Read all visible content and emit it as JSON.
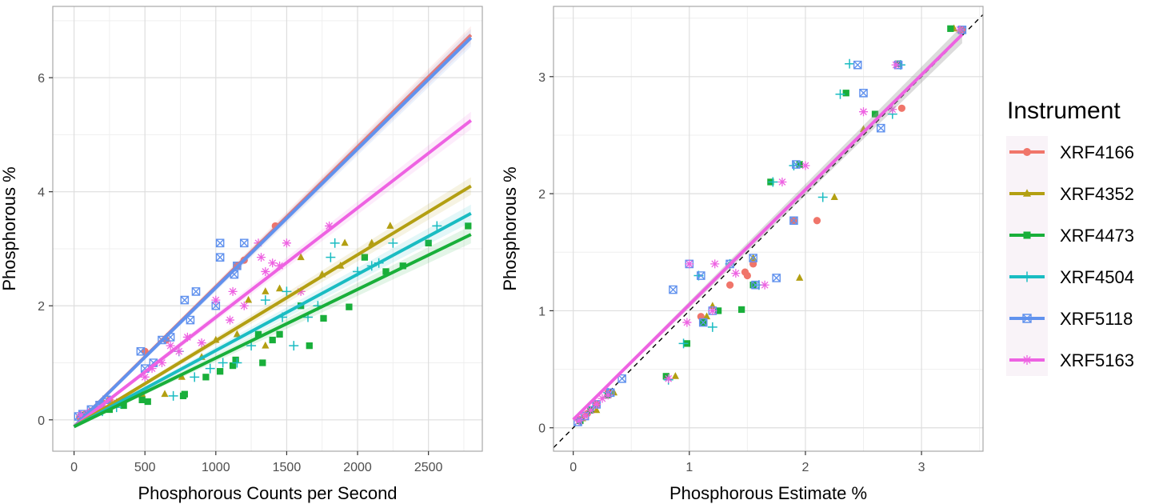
{
  "colors": {
    "XRF4166": "#F0756A",
    "XRF4352": "#B39F12",
    "XRF4473": "#19AF3A",
    "XRF4504": "#1ABCC2",
    "XRF5118": "#6192EE",
    "XRF5163": "#EE62E2",
    "panel_bg": "#ffffff",
    "grid_major": "#DEDEDE",
    "grid_minor": "#EFEFEF",
    "panel_border": "#A8A8A8",
    "axis_text": "#4D4D4D"
  },
  "legend": {
    "title": "Instrument",
    "entries": [
      {
        "label": "XRF4166",
        "shape": "circle"
      },
      {
        "label": "XRF4352",
        "shape": "triangle"
      },
      {
        "label": "XRF4473",
        "shape": "square"
      },
      {
        "label": "XRF4504",
        "shape": "plus"
      },
      {
        "label": "XRF5118",
        "shape": "square-cross"
      },
      {
        "label": "XRF5163",
        "shape": "asterisk"
      }
    ]
  },
  "chart_data": [
    {
      "type": "scatter",
      "xlabel": "Phosphorous Counts per Second",
      "ylabel": "Phosphorous %",
      "xlim": [
        -150,
        2880
      ],
      "ylim": [
        -0.55,
        7.25
      ],
      "xticks": [
        0,
        500,
        1000,
        1500,
        2000,
        2500
      ],
      "yticks": [
        0,
        2,
        4,
        6
      ],
      "xtick_labels": [
        "0",
        "500",
        "1000",
        "1500",
        "2000",
        "2500"
      ],
      "ytick_labels": [
        "0",
        "2",
        "4",
        "6"
      ],
      "grid": true,
      "fit_lines": [
        {
          "series": "XRF4166",
          "x": [
            0,
            2800
          ],
          "y": [
            -0.12,
            6.75
          ]
        },
        {
          "series": "XRF5118",
          "x": [
            0,
            2800
          ],
          "y": [
            -0.12,
            6.7
          ]
        },
        {
          "series": "XRF5163",
          "x": [
            0,
            2800
          ],
          "y": [
            -0.12,
            5.25
          ]
        },
        {
          "series": "XRF4352",
          "x": [
            0,
            2800
          ],
          "y": [
            -0.12,
            4.1
          ]
        },
        {
          "series": "XRF4504",
          "x": [
            0,
            2800
          ],
          "y": [
            -0.12,
            3.62
          ]
        },
        {
          "series": "XRF4473",
          "x": [
            0,
            2800
          ],
          "y": [
            -0.12,
            3.25
          ]
        }
      ],
      "series": [
        {
          "name": "XRF4166",
          "points": [
            [
              40,
              0.05
            ],
            [
              60,
              0.08
            ],
            [
              80,
              0.1
            ],
            [
              120,
              0.15
            ],
            [
              150,
              0.2
            ],
            [
              200,
              0.3
            ],
            [
              250,
              0.35
            ],
            [
              500,
              1.2
            ],
            [
              650,
              1.4
            ],
            [
              1150,
              2.7
            ],
            [
              1200,
              2.8
            ],
            [
              1420,
              3.4
            ]
          ]
        },
        {
          "name": "XRF4352",
          "points": [
            [
              60,
              0.06
            ],
            [
              100,
              0.1
            ],
            [
              150,
              0.16
            ],
            [
              200,
              0.22
            ],
            [
              300,
              0.3
            ],
            [
              480,
              0.45
            ],
            [
              640,
              0.45
            ],
            [
              760,
              0.75
            ],
            [
              900,
              1.1
            ],
            [
              1000,
              1.4
            ],
            [
              1150,
              1.5
            ],
            [
              1230,
              2.1
            ],
            [
              1350,
              1.3
            ],
            [
              1350,
              2.25
            ],
            [
              1450,
              2.3
            ],
            [
              1600,
              2.85
            ],
            [
              1750,
              2.55
            ],
            [
              1880,
              2.7
            ],
            [
              1910,
              3.1
            ],
            [
              2100,
              3.1
            ],
            [
              2230,
              3.4
            ]
          ]
        },
        {
          "name": "XRF4473",
          "points": [
            [
              80,
              0.08
            ],
            [
              150,
              0.12
            ],
            [
              250,
              0.18
            ],
            [
              350,
              0.25
            ],
            [
              480,
              0.35
            ],
            [
              520,
              0.32
            ],
            [
              770,
              0.42
            ],
            [
              780,
              0.45
            ],
            [
              930,
              0.75
            ],
            [
              1030,
              0.85
            ],
            [
              1120,
              0.95
            ],
            [
              1140,
              1.05
            ],
            [
              1300,
              1.5
            ],
            [
              1330,
              1.0
            ],
            [
              1400,
              1.4
            ],
            [
              1450,
              1.5
            ],
            [
              1600,
              2.0
            ],
            [
              1660,
              1.3
            ],
            [
              1760,
              1.78
            ],
            [
              1940,
              1.98
            ],
            [
              2050,
              2.85
            ],
            [
              2200,
              2.6
            ],
            [
              2320,
              2.7
            ],
            [
              2500,
              3.1
            ],
            [
              2780,
              3.4
            ]
          ]
        },
        {
          "name": "XRF4504",
          "points": [
            [
              100,
              0.1
            ],
            [
              200,
              0.15
            ],
            [
              300,
              0.22
            ],
            [
              700,
              0.42
            ],
            [
              740,
              1.2
            ],
            [
              850,
              0.75
            ],
            [
              960,
              0.9
            ],
            [
              1050,
              1.0
            ],
            [
              1150,
              1.0
            ],
            [
              1250,
              1.3
            ],
            [
              1350,
              2.1
            ],
            [
              1470,
              1.8
            ],
            [
              1500,
              2.25
            ],
            [
              1550,
              1.3
            ],
            [
              1650,
              1.8
            ],
            [
              1720,
              2.0
            ],
            [
              1810,
              2.85
            ],
            [
              1840,
              3.1
            ],
            [
              2000,
              2.6
            ],
            [
              2100,
              2.7
            ],
            [
              2150,
              2.75
            ],
            [
              2250,
              3.1
            ],
            [
              2560,
              3.4
            ]
          ]
        },
        {
          "name": "XRF5118",
          "points": [
            [
              30,
              0.06
            ],
            [
              60,
              0.1
            ],
            [
              120,
              0.18
            ],
            [
              180,
              0.26
            ],
            [
              230,
              0.35
            ],
            [
              470,
              1.2
            ],
            [
              500,
              0.9
            ],
            [
              560,
              1.0
            ],
            [
              620,
              1.4
            ],
            [
              680,
              1.45
            ],
            [
              780,
              2.1
            ],
            [
              820,
              1.75
            ],
            [
              860,
              2.25
            ],
            [
              1000,
              2.0
            ],
            [
              1030,
              2.85
            ],
            [
              1030,
              3.1
            ],
            [
              1130,
              2.55
            ],
            [
              1150,
              2.7
            ],
            [
              1200,
              3.1
            ]
          ]
        },
        {
          "name": "XRF5163",
          "points": [
            [
              50,
              0.08
            ],
            [
              100,
              0.12
            ],
            [
              200,
              0.2
            ],
            [
              300,
              0.3
            ],
            [
              500,
              0.75
            ],
            [
              550,
              0.9
            ],
            [
              620,
              1.0
            ],
            [
              680,
              1.3
            ],
            [
              740,
              1.2
            ],
            [
              800,
              1.45
            ],
            [
              900,
              1.35
            ],
            [
              1000,
              2.1
            ],
            [
              1100,
              1.75
            ],
            [
              1120,
              2.25
            ],
            [
              1200,
              2.0
            ],
            [
              1300,
              3.1
            ],
            [
              1320,
              2.85
            ],
            [
              1350,
              2.6
            ],
            [
              1400,
              2.75
            ],
            [
              1450,
              2.7
            ],
            [
              1500,
              3.1
            ],
            [
              1600,
              2.25
            ],
            [
              1800,
              3.4
            ]
          ]
        }
      ]
    },
    {
      "type": "scatter",
      "xlabel": "Phosphorous Estimate %",
      "ylabel": "Phosphorous %",
      "xlim": [
        -0.17,
        3.53
      ],
      "ylim": [
        -0.2,
        3.6
      ],
      "xticks": [
        0,
        1,
        2,
        3
      ],
      "yticks": [
        0,
        1,
        2,
        3
      ],
      "xtick_labels": [
        "0",
        "1",
        "2",
        "3"
      ],
      "ytick_labels": [
        "0",
        "1",
        "2",
        "3"
      ],
      "grid": true,
      "reference_line": {
        "style": "dashed",
        "slope": 1,
        "intercept": 0
      },
      "fit_lines": [
        {
          "series": "XRF5163",
          "x": [
            0,
            3.35
          ],
          "y": [
            0.07,
            3.36
          ]
        }
      ],
      "series": [
        {
          "name": "XRF4166",
          "points": [
            [
              0.05,
              0.07
            ],
            [
              0.12,
              0.12
            ],
            [
              0.2,
              0.2
            ],
            [
              0.3,
              0.3
            ],
            [
              1.1,
              0.95
            ],
            [
              1.35,
              1.22
            ],
            [
              1.5,
              1.3
            ],
            [
              1.55,
              1.4
            ],
            [
              1.48,
              1.33
            ],
            [
              1.9,
              1.77
            ],
            [
              2.1,
              1.77
            ],
            [
              2.83,
              2.73
            ],
            [
              3.35,
              3.4
            ]
          ]
        },
        {
          "name": "XRF4352",
          "points": [
            [
              0.08,
              0.08
            ],
            [
              0.2,
              0.15
            ],
            [
              0.35,
              0.3
            ],
            [
              0.88,
              0.44
            ],
            [
              1.15,
              0.95
            ],
            [
              1.2,
              1.04
            ],
            [
              1.55,
              1.45
            ],
            [
              1.95,
              1.28
            ],
            [
              2.25,
              1.97
            ],
            [
              2.5,
              2.55
            ],
            [
              3.28,
              3.41
            ]
          ]
        },
        {
          "name": "XRF4473",
          "points": [
            [
              0.06,
              0.06
            ],
            [
              0.15,
              0.15
            ],
            [
              0.3,
              0.28
            ],
            [
              0.8,
              0.44
            ],
            [
              0.98,
              0.72
            ],
            [
              1.12,
              0.9
            ],
            [
              1.25,
              1.0
            ],
            [
              1.45,
              1.01
            ],
            [
              1.55,
              1.22
            ],
            [
              1.7,
              2.1
            ],
            [
              1.95,
              2.25
            ],
            [
              2.35,
              2.86
            ],
            [
              2.6,
              2.68
            ],
            [
              2.8,
              3.11
            ],
            [
              3.25,
              3.41
            ]
          ]
        },
        {
          "name": "XRF4504",
          "points": [
            [
              0.07,
              0.07
            ],
            [
              0.17,
              0.18
            ],
            [
              0.3,
              0.3
            ],
            [
              0.82,
              0.41
            ],
            [
              0.95,
              0.72
            ],
            [
              1.08,
              1.3
            ],
            [
              1.2,
              0.86
            ],
            [
              1.35,
              1.4
            ],
            [
              1.6,
              1.22
            ],
            [
              1.72,
              2.1
            ],
            [
              1.9,
              2.24
            ],
            [
              2.15,
              1.97
            ],
            [
              2.3,
              2.85
            ],
            [
              2.38,
              3.11
            ],
            [
              2.75,
              2.68
            ],
            [
              2.82,
              3.1
            ]
          ]
        },
        {
          "name": "XRF5118",
          "points": [
            [
              0.04,
              0.05
            ],
            [
              0.1,
              0.1
            ],
            [
              0.2,
              0.2
            ],
            [
              0.32,
              0.3
            ],
            [
              0.42,
              0.42
            ],
            [
              0.86,
              1.18
            ],
            [
              1.0,
              1.4
            ],
            [
              1.1,
              1.3
            ],
            [
              1.12,
              0.9
            ],
            [
              1.2,
              1.0
            ],
            [
              1.35,
              1.4
            ],
            [
              1.55,
              1.45
            ],
            [
              1.57,
              1.22
            ],
            [
              1.75,
              1.28
            ],
            [
              1.9,
              1.77
            ],
            [
              1.92,
              2.25
            ],
            [
              2.45,
              3.1
            ],
            [
              2.5,
              2.86
            ],
            [
              2.65,
              2.56
            ],
            [
              2.8,
              3.1
            ],
            [
              3.35,
              3.4
            ]
          ]
        },
        {
          "name": "XRF5163",
          "points": [
            [
              0.05,
              0.06
            ],
            [
              0.1,
              0.1
            ],
            [
              0.15,
              0.15
            ],
            [
              0.2,
              0.2
            ],
            [
              0.25,
              0.25
            ],
            [
              0.3,
              0.28
            ],
            [
              0.82,
              0.42
            ],
            [
              0.98,
              0.9
            ],
            [
              1.0,
              1.4
            ],
            [
              1.2,
              1.0
            ],
            [
              1.22,
              1.4
            ],
            [
              1.4,
              1.32
            ],
            [
              1.65,
              1.22
            ],
            [
              1.8,
              2.1
            ],
            [
              2.0,
              2.24
            ],
            [
              2.5,
              2.7
            ],
            [
              2.75,
              2.72
            ],
            [
              2.78,
              3.1
            ],
            [
              3.33,
              3.4
            ]
          ]
        }
      ]
    }
  ]
}
